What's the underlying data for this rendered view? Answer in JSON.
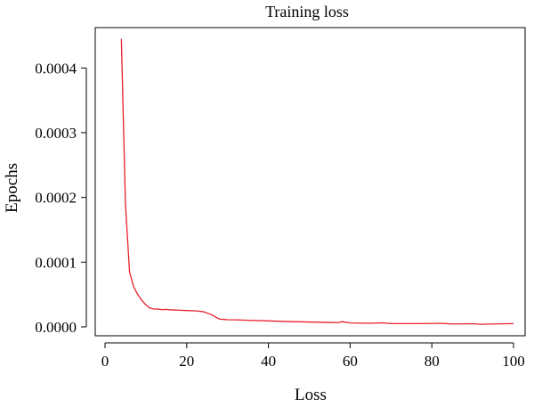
{
  "chart_data": {
    "type": "line",
    "title": "Training loss",
    "xlabel": "Loss",
    "ylabel": "Epochs",
    "xlim": [
      0,
      100
    ],
    "ylim": [
      0,
      0.00045
    ],
    "x_ticks": [
      0,
      20,
      40,
      60,
      80,
      100
    ],
    "x_tick_labels": [
      "0",
      "20",
      "40",
      "60",
      "80",
      "100"
    ],
    "y_ticks": [
      0,
      0.0001,
      0.0002,
      0.0003,
      0.0004
    ],
    "y_tick_labels": [
      "0.0000",
      "0.0001",
      "0.0002",
      "0.0003",
      "0.0004"
    ],
    "grid": false,
    "series": [
      {
        "color": "#e8202a",
        "x": [
          4,
          5,
          6,
          7,
          8,
          9,
          10,
          11,
          12,
          13,
          14,
          15,
          16,
          18,
          20,
          22,
          24,
          26,
          28,
          30,
          32,
          35,
          40,
          45,
          50,
          55,
          57,
          58,
          60,
          65,
          68,
          70,
          75,
          80,
          82,
          85,
          90,
          92,
          95,
          100
        ],
        "y": [
          0.000445,
          0.00019,
          8.5e-05,
          6.2e-05,
          5e-05,
          4.1e-05,
          3.4e-05,
          2.9e-05,
          2.75e-05,
          2.75e-05,
          2.65e-05,
          2.7e-05,
          2.62e-05,
          2.58e-05,
          2.52e-05,
          2.48e-05,
          2.35e-05,
          1.9e-05,
          1.2e-05,
          1.1e-05,
          1.08e-05,
          1.02e-05,
          9.2e-06,
          8.2e-06,
          7.5e-06,
          6.8e-06,
          6.5e-06,
          8e-06,
          6e-06,
          5.5e-06,
          6.2e-06,
          5e-06,
          5e-06,
          5.2e-06,
          5.5e-06,
          4.5e-06,
          4.8e-06,
          4e-06,
          4.5e-06,
          5e-06
        ]
      }
    ]
  }
}
